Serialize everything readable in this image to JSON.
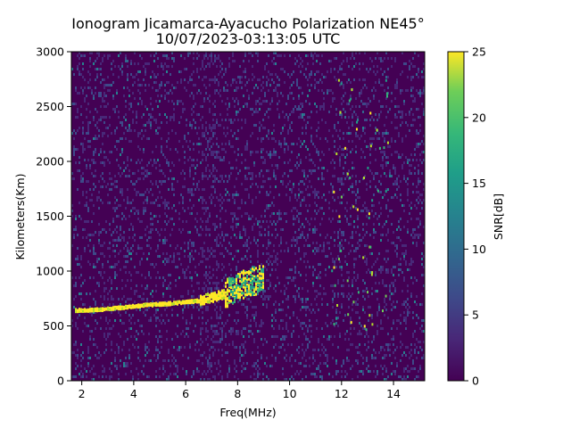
{
  "chart_data": {
    "type": "heatmap",
    "title_line1": "Ionogram Jicamarca-Ayacucho Polarization NE45°",
    "title_line2": "10/07/2023-03:13:05 UTC",
    "xlabel": "Freq(MHz)",
    "ylabel": "Kilometers(Km)",
    "xlim": [
      1.6,
      15.2
    ],
    "ylim": [
      0,
      3000
    ],
    "xticks": [
      "2",
      "4",
      "6",
      "8",
      "10",
      "12",
      "14"
    ],
    "yticks": [
      "0",
      "500",
      "1000",
      "1500",
      "2000",
      "2500",
      "3000"
    ],
    "colorbar": {
      "label": "SNR[dB]",
      "range": [
        0,
        25
      ],
      "ticks": [
        "0",
        "5",
        "10",
        "15",
        "20",
        "25"
      ],
      "colormap": "viridis"
    },
    "echo_trace": {
      "description_values": "bright echo trace (km vs MHz)",
      "points": [
        {
          "x": 1.7,
          "y": 640
        },
        {
          "x": 2.5,
          "y": 645
        },
        {
          "x": 3.5,
          "y": 665
        },
        {
          "x": 4.5,
          "y": 690
        },
        {
          "x": 5.5,
          "y": 705
        },
        {
          "x": 6.5,
          "y": 730
        },
        {
          "x": 7.5,
          "y": 790
        },
        {
          "x": 8.0,
          "y": 860
        },
        {
          "x": 8.5,
          "y": 900
        },
        {
          "x": 9.0,
          "y": 930
        }
      ]
    },
    "grid": false
  },
  "colors": {
    "background": "#440154",
    "high": "#fde725"
  }
}
